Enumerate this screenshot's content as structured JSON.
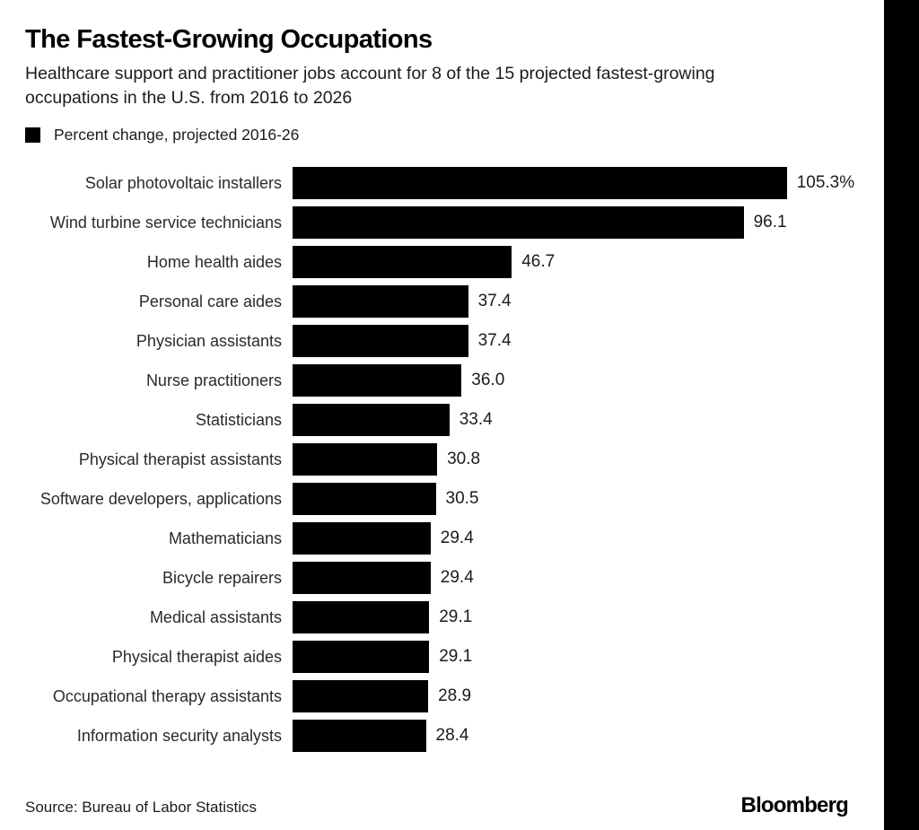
{
  "chart_data": {
    "type": "bar",
    "orientation": "horizontal",
    "title": "The Fastest-Growing Occupations",
    "subtitle_line1": "Healthcare support and practitioner jobs account for 8 of the 15 projected fastest-growing",
    "subtitle_line2": "occupations in the U.S. from 2016 to 2026",
    "legend": "Percent change, projected 2016-26",
    "legend_position": "top-left",
    "xlabel": "",
    "ylabel": "",
    "xlim": [
      0,
      110
    ],
    "grid": false,
    "bar_color": "#000000",
    "background_color": "#ffffff",
    "categories": [
      "Solar photovoltaic installers",
      "Wind turbine service technicians",
      "Home health aides",
      "Personal care aides",
      "Physician assistants",
      "Nurse practitioners",
      "Statisticians",
      "Physical therapist assistants",
      "Software developers, applications",
      "Mathematicians",
      "Bicycle repairers",
      "Medical assistants",
      "Physical therapist aides",
      "Occupational therapy assistants",
      "Information security analysts"
    ],
    "values": [
      105.3,
      96.1,
      46.7,
      37.4,
      37.4,
      36.0,
      33.4,
      30.8,
      30.5,
      29.4,
      29.4,
      29.1,
      29.1,
      28.9,
      28.4
    ],
    "value_labels": [
      "105.3%",
      "96.1",
      "46.7",
      "37.4",
      "37.4",
      "36.0",
      "33.4",
      "30.8",
      "30.5",
      "29.4",
      "29.4",
      "29.1",
      "29.1",
      "28.9",
      "28.4"
    ],
    "source": "Source: Bureau of Labor Statistics"
  },
  "footer": {
    "brand": "Bloomberg"
  }
}
